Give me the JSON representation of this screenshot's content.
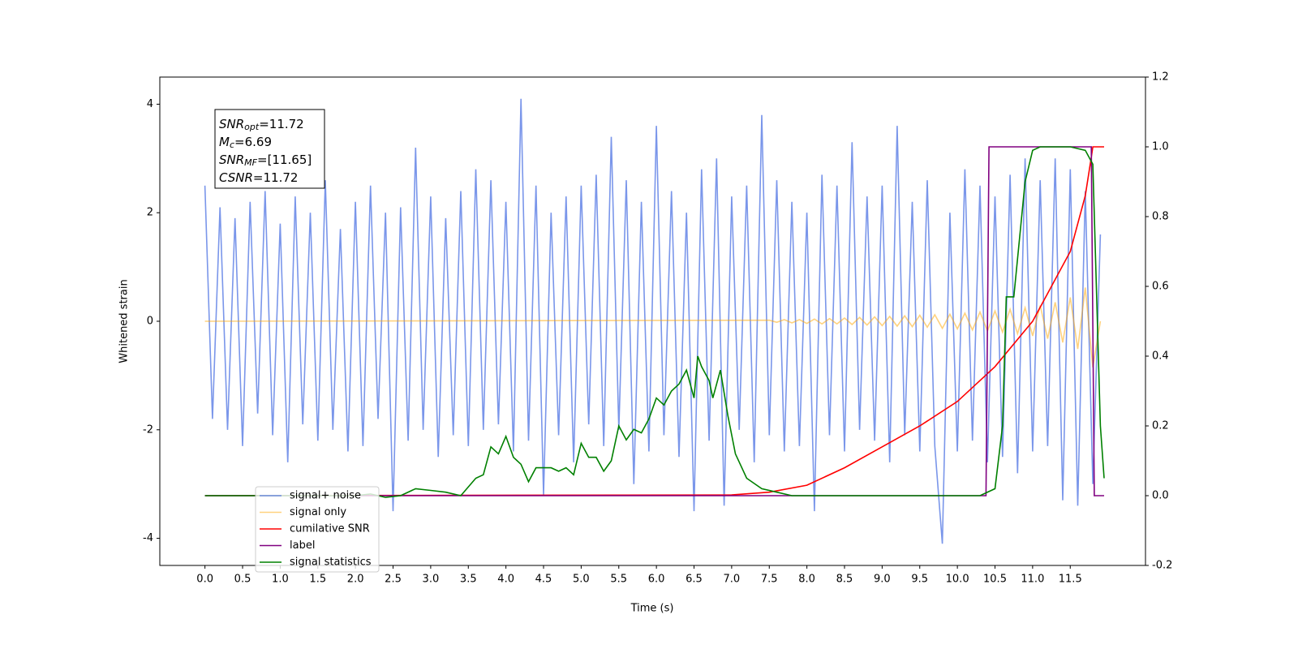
{
  "chart_data": {
    "type": "line",
    "xlabel": "Time (s)",
    "ylabel": "Whitened strain",
    "xlim": [
      -0.6,
      12.5
    ],
    "ylim": [
      -4.5,
      4.5
    ],
    "y2lim": [
      -0.2,
      1.2
    ],
    "xticks": [
      {
        "value": 0,
        "label": "0.0"
      },
      0.5,
      {
        "value": 1,
        "label": "1.0"
      },
      1.5,
      {
        "value": 2,
        "label": "2.0"
      },
      2.5,
      {
        "value": 3,
        "label": "3.0"
      },
      3.5,
      {
        "value": 4,
        "label": "4.0"
      },
      4.5,
      {
        "value": 5,
        "label": "5.0"
      },
      5.5,
      {
        "value": 6,
        "label": "6.0"
      },
      6.5,
      {
        "value": 7,
        "label": "7.0"
      },
      7.5,
      {
        "value": 8,
        "label": "8.0"
      },
      8.5,
      {
        "value": 9,
        "label": "9.0"
      },
      9.5,
      {
        "value": 10,
        "label": "10.0"
      },
      10.5,
      {
        "value": 11,
        "label": "11.0"
      },
      11.5
    ],
    "yticks": [
      -4,
      -2,
      0,
      2,
      4
    ],
    "y2ticks": [
      -0.2,
      {
        "value": 0,
        "label": "0.0"
      },
      0.2,
      0.4,
      0.6,
      0.8,
      {
        "value": 1,
        "label": "1.0"
      },
      1.2
    ],
    "legend": "lower left",
    "annotations": [
      {
        "main": "SNR",
        "sub": "opt",
        "rest": "=11.72"
      },
      {
        "main": "M",
        "sub": "c",
        "rest": "=6.69"
      },
      {
        "main": "SNR",
        "sub": "MF",
        "rest": "=[11.65]"
      },
      {
        "main": "CSNR",
        "sub": null,
        "rest": "=11.72"
      }
    ],
    "series": [
      {
        "name": "signal+ noise",
        "color": "#4169e1",
        "opacity": 0.7,
        "x": [
          0.0,
          0.1,
          0.2,
          0.3,
          0.4,
          0.5,
          0.6,
          0.7,
          0.8,
          0.9,
          1.0,
          1.1,
          1.2,
          1.3,
          1.4,
          1.5,
          1.6,
          1.7,
          1.8,
          1.9,
          2.0,
          2.1,
          2.2,
          2.3,
          2.4,
          2.5,
          2.6,
          2.7,
          2.8,
          2.9,
          3.0,
          3.1,
          3.2,
          3.3,
          3.4,
          3.5,
          3.6,
          3.7,
          3.8,
          3.9,
          4.0,
          4.1,
          4.2,
          4.3,
          4.4,
          4.5,
          4.6,
          4.7,
          4.8,
          4.9,
          5.0,
          5.1,
          5.2,
          5.3,
          5.4,
          5.5,
          5.6,
          5.7,
          5.8,
          5.9,
          6.0,
          6.1,
          6.2,
          6.3,
          6.4,
          6.5,
          6.6,
          6.7,
          6.8,
          6.9,
          7.0,
          7.1,
          7.2,
          7.3,
          7.4,
          7.5,
          7.6,
          7.7,
          7.8,
          7.9,
          8.0,
          8.1,
          8.2,
          8.3,
          8.4,
          8.5,
          8.6,
          8.7,
          8.8,
          8.9,
          9.0,
          9.1,
          9.2,
          9.3,
          9.4,
          9.5,
          9.6,
          9.7,
          9.8,
          9.9,
          10.0,
          10.1,
          10.2,
          10.3,
          10.4,
          10.5,
          10.6,
          10.7,
          10.8,
          10.9,
          11.0,
          11.1,
          11.2,
          11.3,
          11.4,
          11.5,
          11.6,
          11.7,
          11.8,
          11.9
        ],
        "values": [
          2.5,
          -1.8,
          2.1,
          -2.0,
          1.9,
          -2.3,
          2.2,
          -1.7,
          2.4,
          -2.1,
          1.8,
          -2.6,
          2.3,
          -1.9,
          2.0,
          -2.2,
          2.6,
          -2.0,
          1.7,
          -2.4,
          2.2,
          -2.3,
          2.5,
          -1.8,
          2.0,
          -3.5,
          2.1,
          -2.2,
          3.2,
          -2.0,
          2.3,
          -2.5,
          1.9,
          -2.1,
          2.4,
          -2.3,
          2.8,
          -2.0,
          2.6,
          -1.9,
          2.2,
          -2.4,
          4.1,
          -2.2,
          2.5,
          -3.2,
          2.0,
          -2.1,
          2.3,
          -2.6,
          2.5,
          -1.9,
          2.7,
          -2.3,
          3.4,
          -2.0,
          2.6,
          -3.0,
          2.2,
          -2.4,
          3.6,
          -2.1,
          2.4,
          -2.5,
          2.0,
          -3.5,
          2.8,
          -2.2,
          3.0,
          -3.4,
          2.3,
          -2.0,
          2.5,
          -2.6,
          3.8,
          -2.1,
          2.6,
          -2.4,
          2.2,
          -2.3,
          2.0,
          -3.5,
          2.7,
          -2.1,
          2.5,
          -2.4,
          3.3,
          -2.0,
          2.3,
          -2.2,
          2.5,
          -2.6,
          3.6,
          -2.1,
          2.2,
          -2.4,
          2.6,
          -2.3,
          -4.1,
          2.0,
          -2.4,
          2.8,
          -2.2,
          2.5,
          -2.6,
          2.3,
          -2.5,
          2.7,
          -2.8,
          3.0,
          -2.4,
          2.6,
          -2.3,
          3.0,
          -3.3,
          2.8,
          -3.4,
          2.4,
          -3.0,
          1.6
        ]
      },
      {
        "name": "signal only",
        "color": "#ffa500",
        "opacity": 0.5,
        "x": [
          0.0,
          7.5,
          7.6,
          7.7,
          7.8,
          7.9,
          8.0,
          8.1,
          8.2,
          8.3,
          8.4,
          8.5,
          8.6,
          8.7,
          8.8,
          8.9,
          9.0,
          9.1,
          9.2,
          9.3,
          9.4,
          9.5,
          9.6,
          9.7,
          9.8,
          9.9,
          10.0,
          10.1,
          10.2,
          10.3,
          10.4,
          10.5,
          10.6,
          10.7,
          10.8,
          10.9,
          11.0,
          11.1,
          11.2,
          11.3,
          11.4,
          11.5,
          11.6,
          11.7,
          11.8,
          11.9
        ],
        "values": [
          0,
          0.02,
          -0.02,
          0.03,
          -0.03,
          0.03,
          -0.04,
          0.04,
          -0.05,
          0.05,
          -0.05,
          0.06,
          -0.06,
          0.07,
          -0.07,
          0.08,
          -0.08,
          0.09,
          -0.09,
          0.1,
          -0.1,
          0.11,
          -0.11,
          0.12,
          -0.13,
          0.13,
          -0.14,
          0.15,
          -0.16,
          0.17,
          -0.18,
          0.19,
          -0.2,
          0.22,
          -0.23,
          0.25,
          -0.27,
          0.29,
          -0.32,
          0.35,
          -0.39,
          0.44,
          -0.51,
          0.62,
          -0.85,
          0
        ]
      },
      {
        "name": "cumilative SNR",
        "color": "#ff0000",
        "opacity": 1,
        "axis": "y2",
        "x": [
          0.0,
          7.0,
          7.5,
          8.0,
          8.5,
          9.0,
          9.5,
          10.0,
          10.5,
          11.0,
          11.5,
          11.7,
          11.78,
          11.8,
          11.95
        ],
        "values": [
          0,
          0.002,
          0.01,
          0.03,
          0.08,
          0.14,
          0.2,
          0.27,
          0.37,
          0.5,
          0.7,
          0.86,
          0.97,
          1.0,
          1.0
        ]
      },
      {
        "name": "label",
        "color": "#800080",
        "opacity": 1,
        "axis": "y2",
        "x": [
          0.0,
          10.38,
          10.42,
          11.78,
          11.82,
          11.95
        ],
        "values": [
          0,
          0,
          1,
          1,
          0,
          0
        ]
      },
      {
        "name": "signal statistics",
        "color": "#008000",
        "opacity": 1,
        "axis": "y2",
        "x": [
          0.0,
          2.0,
          2.2,
          2.4,
          2.6,
          2.8,
          3.0,
          3.2,
          3.4,
          3.6,
          3.7,
          3.8,
          3.9,
          4.0,
          4.1,
          4.2,
          4.3,
          4.4,
          4.5,
          4.6,
          4.7,
          4.8,
          4.9,
          5.0,
          5.1,
          5.2,
          5.3,
          5.4,
          5.5,
          5.6,
          5.7,
          5.8,
          5.9,
          6.0,
          6.1,
          6.2,
          6.3,
          6.4,
          6.5,
          6.55,
          6.6,
          6.7,
          6.75,
          6.85,
          6.95,
          7.05,
          7.2,
          7.4,
          7.6,
          7.8,
          8.0,
          10.3,
          10.5,
          10.6,
          10.65,
          10.75,
          10.9,
          11.0,
          11.1,
          11.5,
          11.7,
          11.8,
          11.9,
          11.95
        ],
        "values": [
          0,
          0,
          0.005,
          -0.005,
          0,
          0.02,
          0.015,
          0.01,
          0,
          0.05,
          0.06,
          0.14,
          0.12,
          0.17,
          0.11,
          0.09,
          0.04,
          0.08,
          0.08,
          0.08,
          0.07,
          0.08,
          0.06,
          0.15,
          0.11,
          0.11,
          0.07,
          0.1,
          0.2,
          0.16,
          0.19,
          0.18,
          0.22,
          0.28,
          0.26,
          0.3,
          0.32,
          0.36,
          0.28,
          0.4,
          0.37,
          0.33,
          0.28,
          0.36,
          0.23,
          0.12,
          0.05,
          0.02,
          0.01,
          0,
          0,
          0,
          0.02,
          0.2,
          0.57,
          0.57,
          0.9,
          0.99,
          1.0,
          1.0,
          0.99,
          0.95,
          0.2,
          0.05
        ]
      }
    ]
  }
}
